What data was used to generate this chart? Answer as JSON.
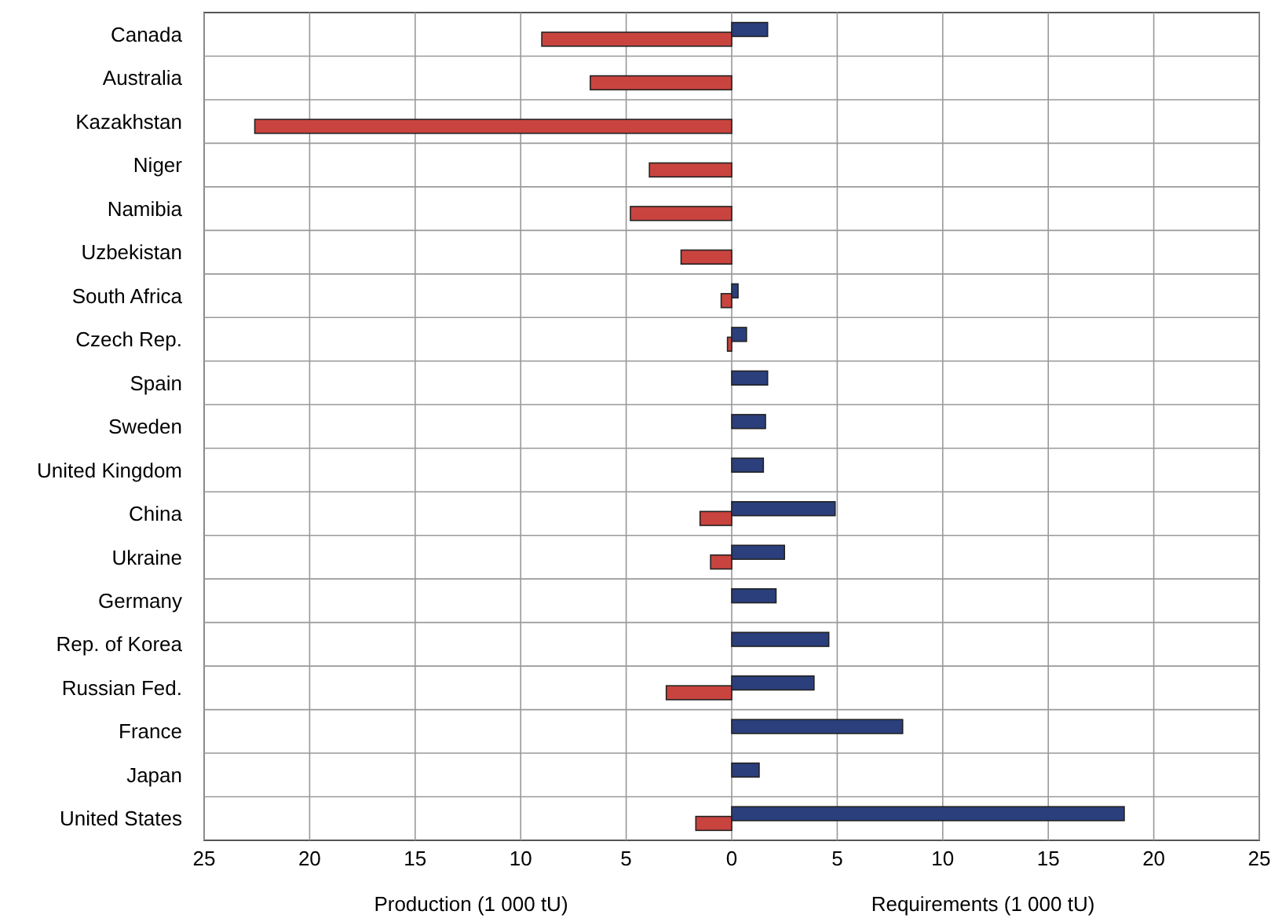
{
  "chart_data": {
    "type": "bar",
    "orientation": "horizontal",
    "categories": [
      "Canada",
      "Australia",
      "Kazakhstan",
      "Niger",
      "Namibia",
      "Uzbekistan",
      "South Africa",
      "Czech Rep.",
      "Spain",
      "Sweden",
      "United Kingdom",
      "China",
      "Ukraine",
      "Germany",
      "Rep. of Korea",
      "Russian Fed.",
      "France",
      "Japan",
      "United States"
    ],
    "series": [
      {
        "color": "#c9443f",
        "values": [
          -9.0,
          -6.7,
          -22.6,
          -3.9,
          -4.8,
          -2.4,
          -0.5,
          -0.2,
          null,
          null,
          null,
          -1.5,
          -1.0,
          null,
          null,
          -3.1,
          null,
          null,
          -1.7
        ]
      },
      {
        "color": "#2b3f7d",
        "values": [
          1.7,
          null,
          null,
          null,
          null,
          null,
          0.3,
          0.7,
          1.7,
          1.6,
          1.5,
          4.9,
          2.5,
          2.1,
          4.6,
          3.9,
          8.1,
          1.3,
          18.6
        ]
      }
    ],
    "xlim": [
      -25,
      25
    ],
    "xticks": [
      {
        "value": -25,
        "label": "25"
      },
      {
        "value": -20,
        "label": "20"
      },
      {
        "value": -15,
        "label": "15"
      },
      {
        "value": -10,
        "label": "10"
      },
      {
        "value": -5,
        "label": "5"
      },
      0,
      5,
      10,
      15,
      20,
      25
    ],
    "grid": true,
    "xlabel": "Production (1 000 tU)",
    "annotations": [
      "Requirements (1 000 tU)"
    ]
  }
}
